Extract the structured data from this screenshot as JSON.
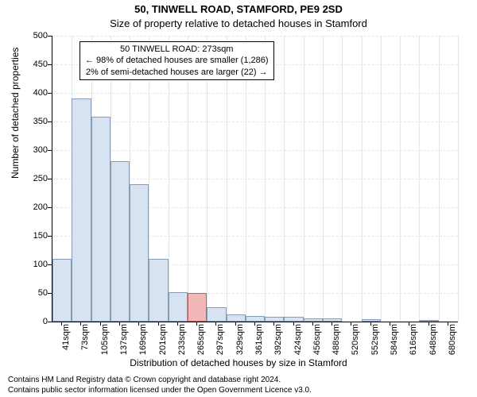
{
  "title": "50, TINWELL ROAD, STAMFORD, PE9 2SD",
  "subtitle": "Size of property relative to detached houses in Stamford",
  "y_axis_label": "Number of detached properties",
  "x_axis_label": "Distribution of detached houses by size in Stamford",
  "annotation": {
    "line1": "50 TINWELL ROAD: 273sqm",
    "line2": "← 98% of detached houses are smaller (1,286)",
    "line3": "2% of semi-detached houses are larger (22) →"
  },
  "footer": {
    "line1": "Contains HM Land Registry data © Crown copyright and database right 2024.",
    "line2": "Contains public sector information licensed under the Open Government Licence v3.0."
  },
  "chart": {
    "type": "bar_histogram",
    "background_color": "#ffffff",
    "grid_color": "#e0e6ed",
    "bar_fill": "#d8e3f2",
    "bar_border": "#889bb5",
    "highlight_fill": "#f2b8b8",
    "highlight_border": "#c06060",
    "ylim": [
      0,
      500
    ],
    "ytick_step": 50,
    "x_categories": [
      "41sqm",
      "73sqm",
      "105sqm",
      "137sqm",
      "169sqm",
      "201sqm",
      "233sqm",
      "265sqm",
      "297sqm",
      "329sqm",
      "361sqm",
      "392sqm",
      "424sqm",
      "456sqm",
      "488sqm",
      "520sqm",
      "552sqm",
      "584sqm",
      "616sqm",
      "648sqm",
      "680sqm"
    ],
    "values": [
      110,
      390,
      358,
      280,
      240,
      110,
      52,
      50,
      25,
      12,
      10,
      8,
      8,
      6,
      5,
      0,
      4,
      0,
      0,
      3,
      0
    ],
    "highlight_index": 7,
    "bar_width_ratio": 1.0,
    "label_fontsize": 12,
    "tick_fontsize": 11,
    "title_fontsize": 13
  }
}
